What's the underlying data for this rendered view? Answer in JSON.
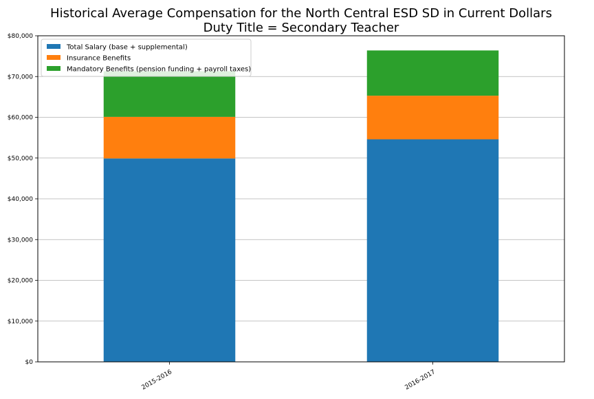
{
  "chart_data": {
    "type": "bar",
    "stacked": true,
    "title": "Historical Average Compensation for the North Central ESD SD in Current Dollars",
    "subtitle": "Duty Title = Secondary Teacher",
    "xlabel": "",
    "ylabel": "",
    "categories": [
      "2015-2016",
      "2016-2017"
    ],
    "series": [
      {
        "name": "Total Salary (base + supplemental)",
        "values": [
          49900,
          54600
        ],
        "color": "#1f77b4"
      },
      {
        "name": "Insurance Benefits",
        "values": [
          10200,
          10700
        ],
        "color": "#ff7f0e"
      },
      {
        "name": "Mandatory Benefits (pension funding + payroll taxes)",
        "values": [
          11200,
          11100
        ],
        "color": "#2ca02c"
      }
    ],
    "ylim": [
      0,
      80000
    ],
    "yticks": [
      0,
      10000,
      20000,
      30000,
      40000,
      50000,
      60000,
      70000,
      80000
    ],
    "ytick_labels": [
      "$0",
      "$10,000",
      "$20,000",
      "$30,000",
      "$40,000",
      "$50,000",
      "$60,000",
      "$70,000",
      "$80,000"
    ],
    "grid": "horizontal",
    "legend_position": "top-left"
  }
}
